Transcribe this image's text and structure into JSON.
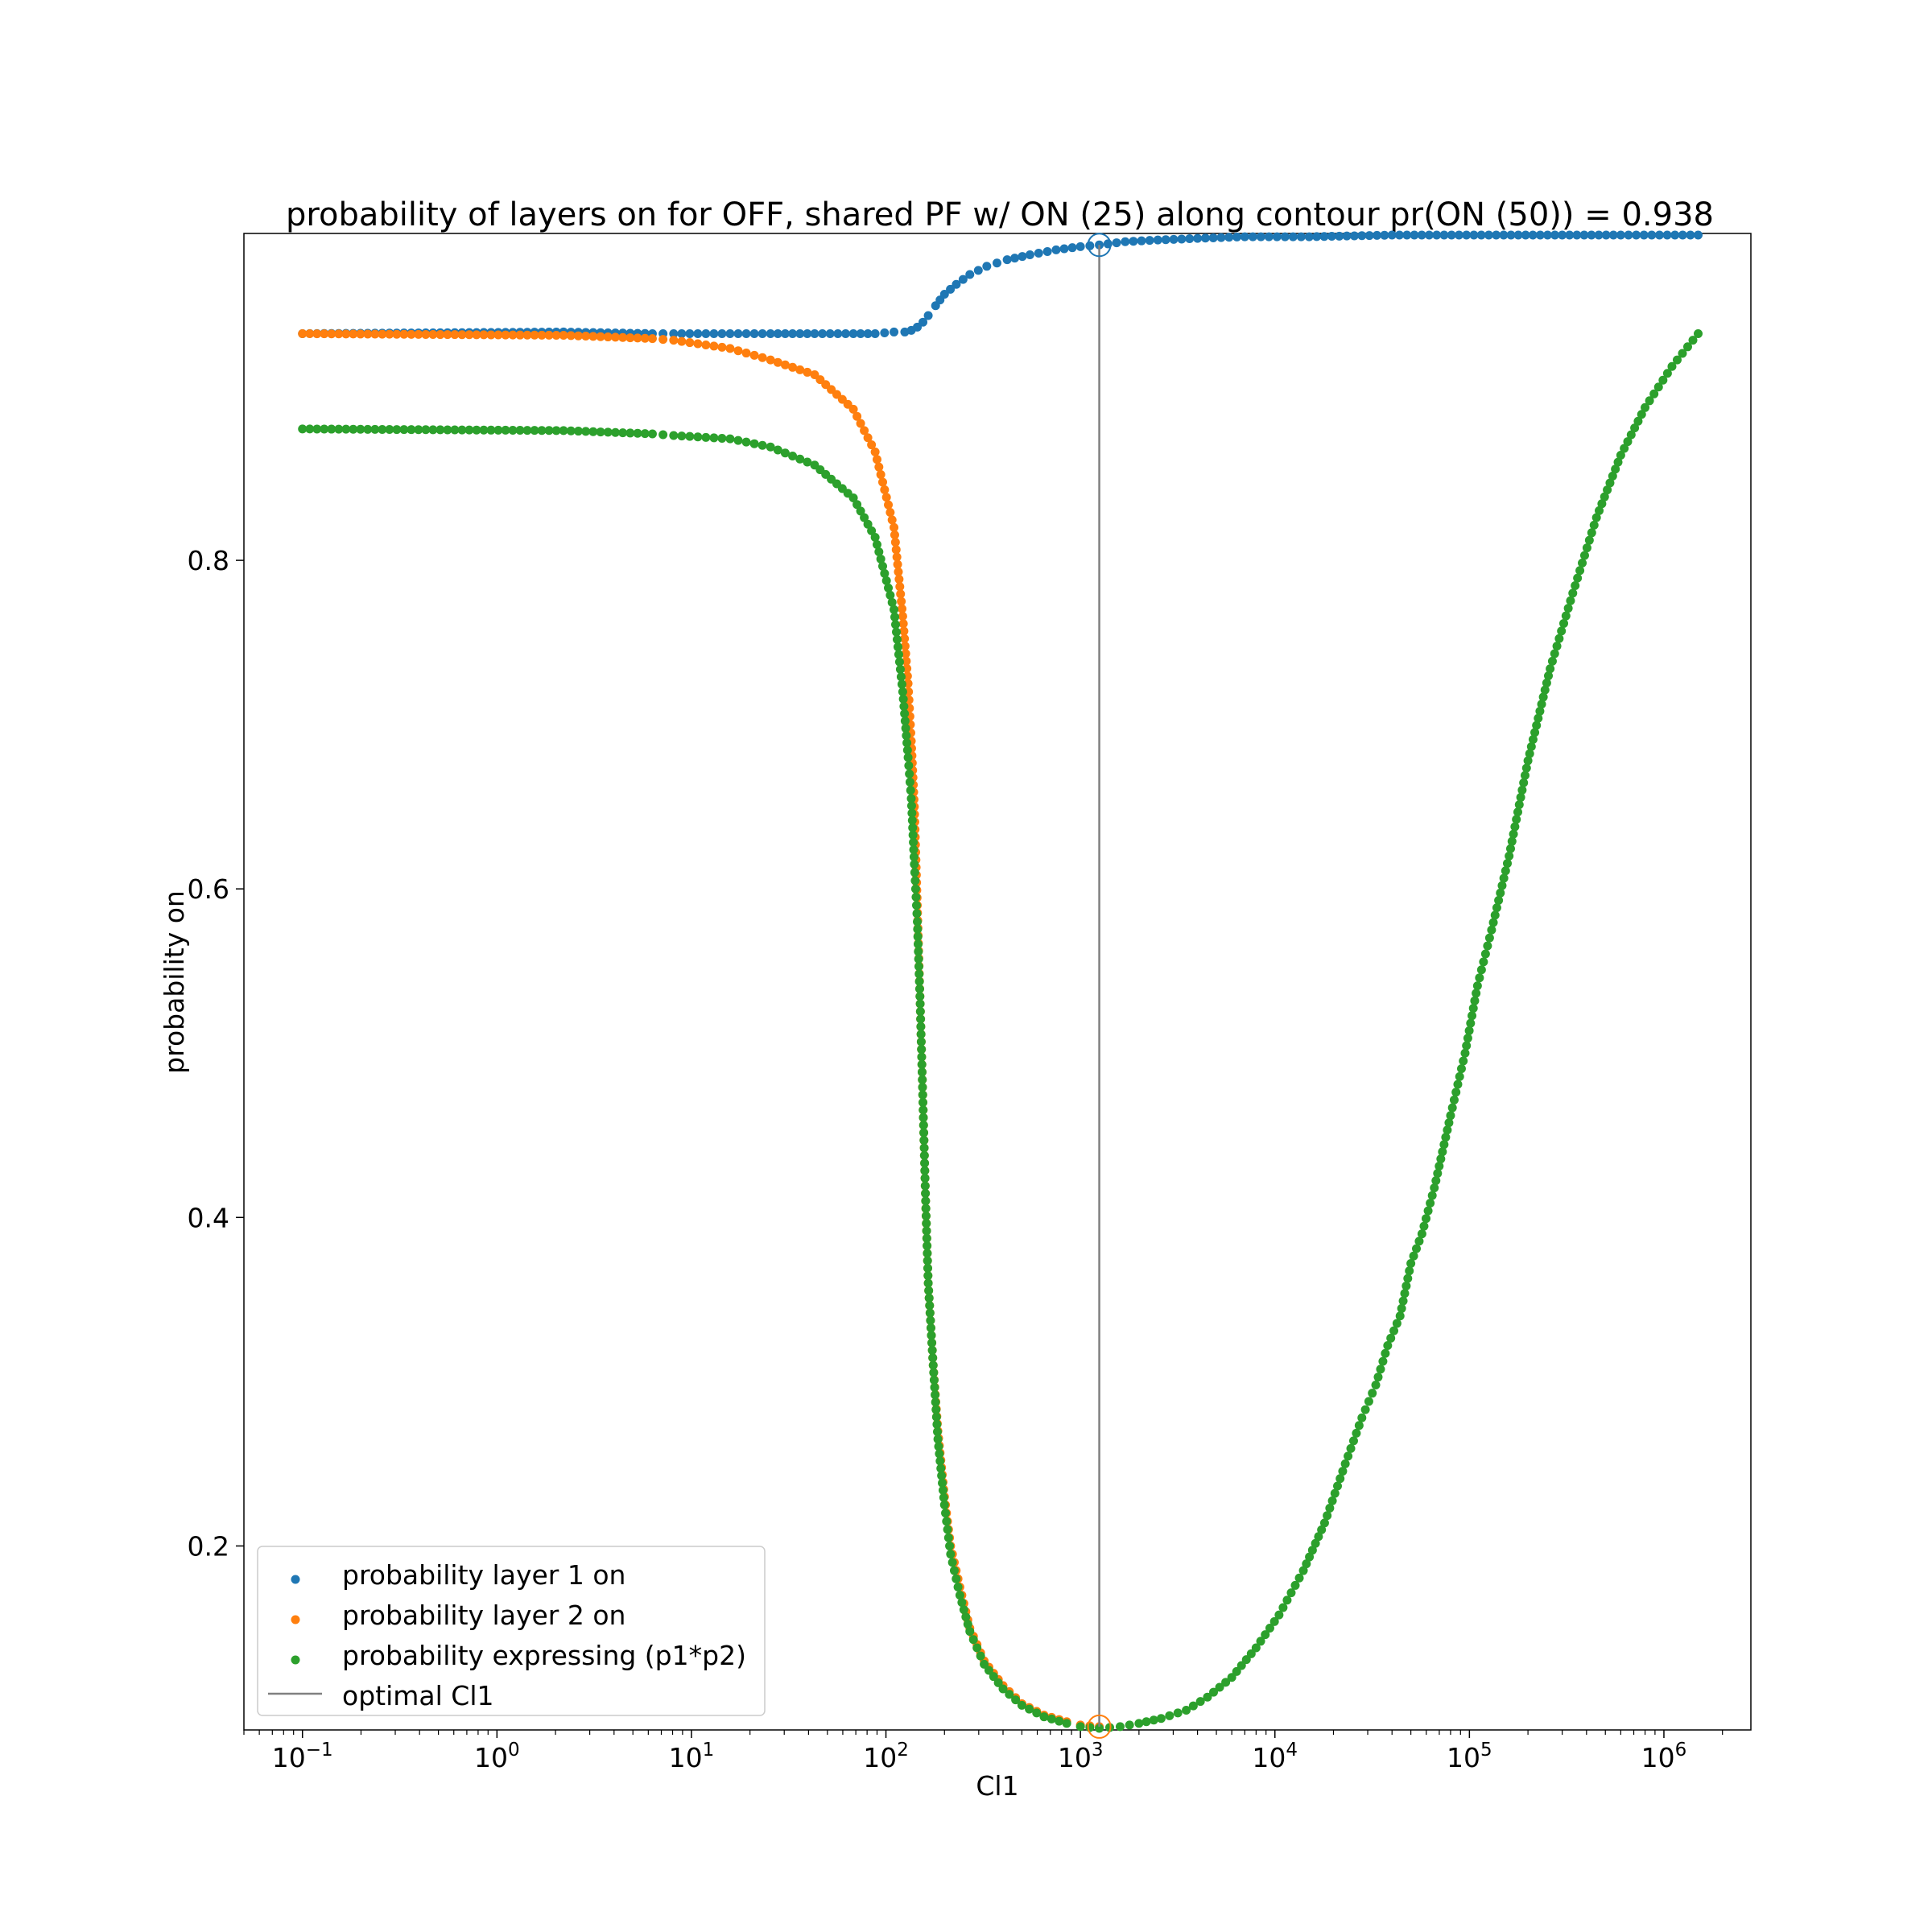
{
  "chart_data": {
    "type": "scatter",
    "title": "probability of layers on for OFF, shared PF w/ ON (25) along contour pr(ON (50)) = 0.938",
    "xlabel": "Cl1",
    "ylabel": "probability on",
    "x_scale": "log",
    "xlim": [
      0.05,
      2800000
    ],
    "ylim": [
      0.088,
      0.999
    ],
    "grid": false,
    "legend_position": "lower-left",
    "x_ticks": [
      {
        "base": "10",
        "exp": "−1",
        "value": 0.1
      },
      {
        "base": "10",
        "exp": "0",
        "value": 1
      },
      {
        "base": "10",
        "exp": "1",
        "value": 10
      },
      {
        "base": "10",
        "exp": "2",
        "value": 100
      },
      {
        "base": "10",
        "exp": "3",
        "value": 1000
      },
      {
        "base": "10",
        "exp": "4",
        "value": 10000
      },
      {
        "base": "10",
        "exp": "5",
        "value": 100000
      },
      {
        "base": "10",
        "exp": "6",
        "value": 1000000
      }
    ],
    "y_ticks": [
      {
        "label": "0.2",
        "value": 0.2
      },
      {
        "label": "0.4",
        "value": 0.4
      },
      {
        "label": "0.6",
        "value": 0.6
      },
      {
        "label": "0.8",
        "value": 0.8
      }
    ],
    "optimal_x": 1250,
    "optimal_marker_points": [
      {
        "series": "layer1",
        "x": 1250,
        "y": 0.992
      },
      {
        "series": "layer2",
        "x": 1250,
        "y": 0.09
      }
    ],
    "series": [
      {
        "name": "probability layer 1 on",
        "color": "#1f77b4",
        "x": [
          0.1,
          2.2,
          6.3,
          8.1,
          15.8,
          25.5,
          43,
          68,
          88,
          110,
          125,
          135,
          145,
          155,
          165,
          180,
          200,
          230,
          270,
          330,
          420,
          550,
          750,
          1000,
          1250,
          1700,
          2500,
          4000,
          7000,
          15000,
          40000,
          150000,
          600000,
          1500000
        ],
        "y": [
          0.938,
          0.939,
          0.938,
          0.938,
          0.938,
          0.938,
          0.938,
          0.938,
          0.938,
          0.939,
          0.939,
          0.94,
          0.942,
          0.945,
          0.949,
          0.955,
          0.962,
          0.968,
          0.974,
          0.979,
          0.983,
          0.986,
          0.989,
          0.991,
          0.992,
          0.994,
          0.995,
          0.996,
          0.997,
          0.997,
          0.998,
          0.998,
          0.998,
          0.998
        ]
      },
      {
        "name": "probability layer 2 on",
        "color": "#ff7f0e",
        "x": [
          0.1,
          2.2,
          6.3,
          8.1,
          15.8,
          25.5,
          43,
          68,
          88,
          110,
          122,
          130,
          135,
          140,
          145,
          150,
          155,
          160,
          165,
          175,
          185,
          200,
          215,
          240,
          270,
          320,
          400,
          500,
          650,
          850,
          1000,
          1250
        ],
        "y": [
          0.938,
          0.937,
          0.935,
          0.934,
          0.929,
          0.922,
          0.913,
          0.892,
          0.866,
          0.82,
          0.766,
          0.725,
          0.69,
          0.65,
          0.59,
          0.53,
          0.47,
          0.41,
          0.36,
          0.31,
          0.27,
          0.23,
          0.2,
          0.175,
          0.15,
          0.13,
          0.115,
          0.104,
          0.097,
          0.093,
          0.091,
          0.09
        ]
      },
      {
        "name": "probability expressing (p1*p2)",
        "color": "#2ca02c",
        "x": [
          0.1,
          2.2,
          6.3,
          8.1,
          15.8,
          25.5,
          43,
          68,
          88,
          110,
          122,
          130,
          135,
          140,
          145,
          150,
          155,
          160,
          165,
          175,
          185,
          200,
          215,
          240,
          270,
          320,
          400,
          500,
          650,
          850,
          1000,
          1250,
          1600,
          2000,
          2600,
          3500,
          4500,
          6000,
          8000,
          10500,
          14000,
          18000,
          23000,
          28000,
          33000,
          38000,
          44000,
          50000,
          57000,
          66000,
          80000,
          95000,
          110000,
          130000,
          160000,
          200000,
          260000,
          340000,
          450000,
          600000,
          800000,
          1100000,
          1500000
        ],
        "y": [
          0.88,
          0.879,
          0.877,
          0.876,
          0.874,
          0.869,
          0.858,
          0.838,
          0.814,
          0.77,
          0.72,
          0.68,
          0.655,
          0.615,
          0.58,
          0.53,
          0.47,
          0.41,
          0.36,
          0.31,
          0.265,
          0.225,
          0.195,
          0.17,
          0.148,
          0.128,
          0.113,
          0.103,
          0.096,
          0.092,
          0.09,
          0.089,
          0.09,
          0.092,
          0.095,
          0.1,
          0.108,
          0.12,
          0.138,
          0.158,
          0.185,
          0.214,
          0.25,
          0.278,
          0.298,
          0.322,
          0.34,
          0.372,
          0.39,
          0.418,
          0.462,
          0.5,
          0.541,
          0.575,
          0.62,
          0.678,
          0.734,
          0.78,
          0.826,
          0.864,
          0.893,
          0.918,
          0.938
        ]
      }
    ],
    "legend": [
      {
        "label": "probability layer 1 on",
        "kind": "marker",
        "color": "#1f77b4"
      },
      {
        "label": "probability layer 2 on",
        "kind": "marker",
        "color": "#ff7f0e"
      },
      {
        "label": "probability expressing (p1*p2)",
        "kind": "marker",
        "color": "#2ca02c"
      },
      {
        "label": "optimal Cl1",
        "kind": "line",
        "color": "#808080"
      }
    ]
  }
}
